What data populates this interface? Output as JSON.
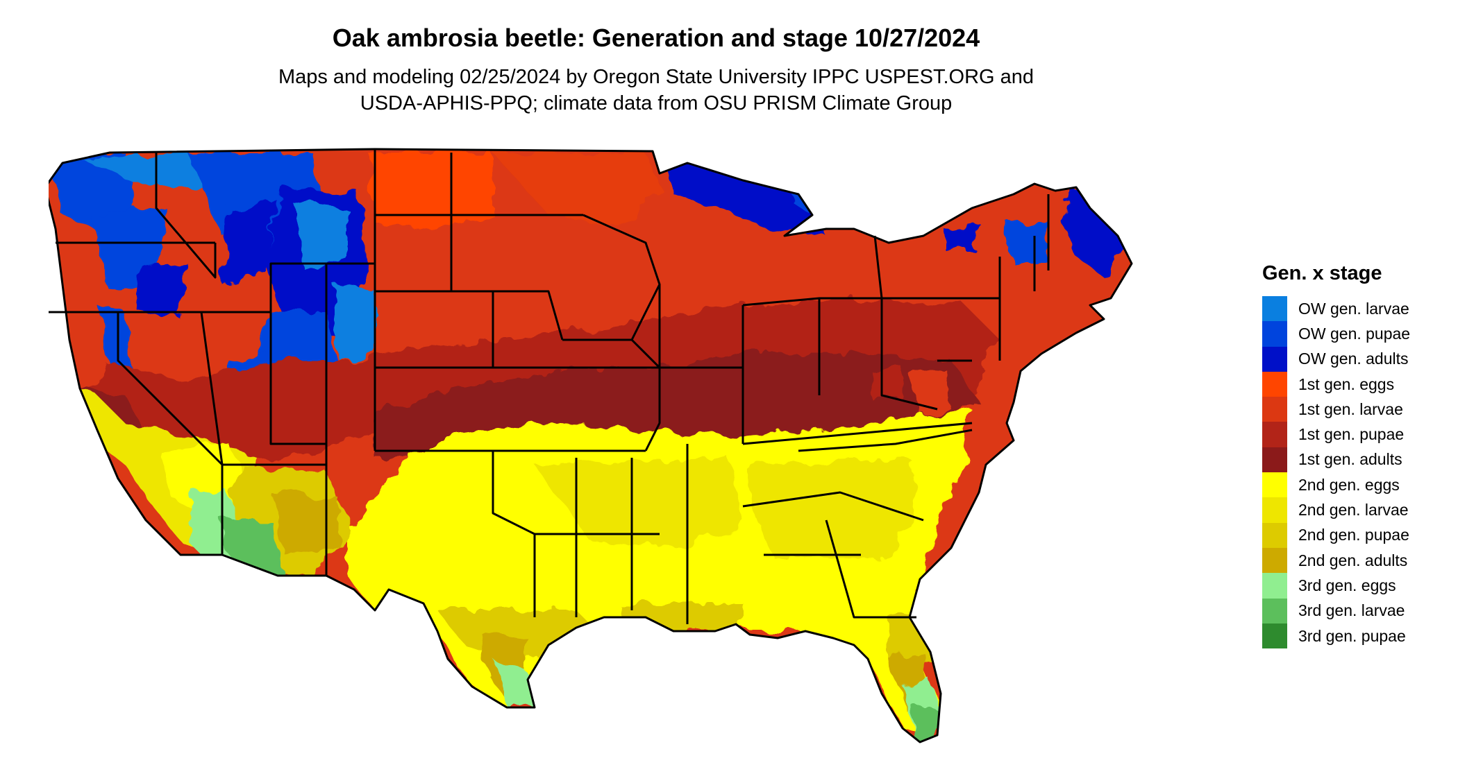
{
  "title": "Oak ambrosia beetle: Generation and stage 10/27/2024",
  "subtitle_line1": "Maps and modeling 02/25/2024 by Oregon State University IPPC USPEST.ORG and",
  "subtitle_line2": "USDA-APHIS-PPQ; climate data from OSU PRISM Climate Group",
  "legend": {
    "title": "Gen. x stage",
    "items": [
      {
        "label": "OW gen. larvae",
        "color": "#0a7fe0"
      },
      {
        "label": "OW gen. pupae",
        "color": "#0044dd"
      },
      {
        "label": "OW gen. adults",
        "color": "#0010c8"
      },
      {
        "label": "1st gen. eggs",
        "color": "#ff4500"
      },
      {
        "label": "1st gen. larvae",
        "color": "#dc3812"
      },
      {
        "label": "1st gen. pupae",
        "color": "#b22418"
      },
      {
        "label": "1st gen. adults",
        "color": "#8b1a1a"
      },
      {
        "label": "2nd gen. eggs",
        "color": "#ffff00"
      },
      {
        "label": "2nd gen. larvae",
        "color": "#eee600"
      },
      {
        "label": "2nd gen. pupae",
        "color": "#ddcb00"
      },
      {
        "label": "2nd gen. adults",
        "color": "#cdaa00"
      },
      {
        "label": "3rd gen. eggs",
        "color": "#90ee90"
      },
      {
        "label": "3rd gen. larvae",
        "color": "#5cbf5c"
      },
      {
        "label": "3rd gen. pupae",
        "color": "#2e8b2e"
      }
    ]
  }
}
